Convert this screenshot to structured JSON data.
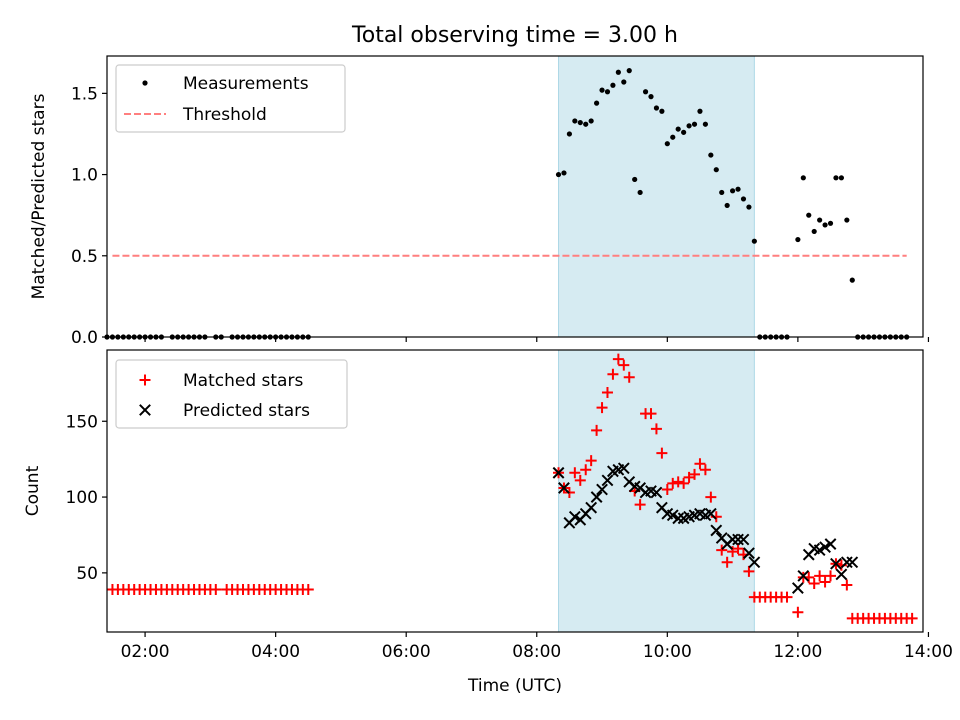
{
  "chart_data": [
    {
      "type": "scatter",
      "title": "Total observing time = 3.00 h",
      "xlabel": "",
      "ylabel": "Matched/Predicted stars",
      "xlim": [
        "01:25",
        "13:55"
      ],
      "ylim": [
        0,
        1.73
      ],
      "y_ticks": [
        0.0,
        0.5,
        1.0,
        1.5
      ],
      "y_tick_labels": [
        "0.0",
        "0.5",
        "1.0",
        "1.5"
      ],
      "x_ticks": [
        "02:00",
        "04:00",
        "06:00",
        "08:00",
        "10:00",
        "12:00",
        "14:00"
      ],
      "x_tick_labels_shown": false,
      "grid": false,
      "legend": "upper left",
      "observing_window": {
        "start": "08:20",
        "end": "11:20"
      },
      "series": [
        {
          "name": "Measurements",
          "marker": "dot",
          "color": "#000000",
          "points": [
            [
              "01:25",
              0
            ],
            [
              "01:30",
              0
            ],
            [
              "01:35",
              0
            ],
            [
              "01:40",
              0
            ],
            [
              "01:45",
              0
            ],
            [
              "01:50",
              0
            ],
            [
              "01:55",
              0
            ],
            [
              "02:00",
              0
            ],
            [
              "02:05",
              0
            ],
            [
              "02:10",
              0
            ],
            [
              "02:15",
              0
            ],
            [
              "02:25",
              0
            ],
            [
              "02:30",
              0
            ],
            [
              "02:35",
              0
            ],
            [
              "02:40",
              0
            ],
            [
              "02:45",
              0
            ],
            [
              "02:50",
              0
            ],
            [
              "02:55",
              0
            ],
            [
              "03:05",
              0
            ],
            [
              "03:10",
              0
            ],
            [
              "03:20",
              0
            ],
            [
              "03:25",
              0
            ],
            [
              "03:30",
              0
            ],
            [
              "03:35",
              0
            ],
            [
              "03:40",
              0
            ],
            [
              "03:45",
              0
            ],
            [
              "03:50",
              0
            ],
            [
              "03:55",
              0
            ],
            [
              "04:00",
              0
            ],
            [
              "04:05",
              0
            ],
            [
              "04:10",
              0
            ],
            [
              "04:15",
              0
            ],
            [
              "04:20",
              0
            ],
            [
              "04:25",
              0
            ],
            [
              "04:30",
              0
            ],
            [
              "08:20",
              1.0
            ],
            [
              "08:25",
              1.01
            ],
            [
              "08:30",
              1.25
            ],
            [
              "08:35",
              1.33
            ],
            [
              "08:40",
              1.32
            ],
            [
              "08:45",
              1.31
            ],
            [
              "08:50",
              1.33
            ],
            [
              "08:55",
              1.44
            ],
            [
              "09:00",
              1.52
            ],
            [
              "09:05",
              1.51
            ],
            [
              "09:10",
              1.55
            ],
            [
              "09:15",
              1.63
            ],
            [
              "09:20",
              1.57
            ],
            [
              "09:25",
              1.64
            ],
            [
              "09:30",
              0.97
            ],
            [
              "09:35",
              0.89
            ],
            [
              "09:40",
              1.51
            ],
            [
              "09:45",
              1.48
            ],
            [
              "09:50",
              1.41
            ],
            [
              "09:55",
              1.39
            ],
            [
              "10:00",
              1.19
            ],
            [
              "10:05",
              1.23
            ],
            [
              "10:10",
              1.28
            ],
            [
              "10:15",
              1.26
            ],
            [
              "10:20",
              1.3
            ],
            [
              "10:25",
              1.31
            ],
            [
              "10:30",
              1.39
            ],
            [
              "10:35",
              1.31
            ],
            [
              "10:40",
              1.12
            ],
            [
              "10:45",
              1.03
            ],
            [
              "10:50",
              0.89
            ],
            [
              "10:55",
              0.81
            ],
            [
              "11:00",
              0.9
            ],
            [
              "11:05",
              0.91
            ],
            [
              "11:10",
              0.85
            ],
            [
              "11:15",
              0.8
            ],
            [
              "11:20",
              0.59
            ],
            [
              "11:25",
              0
            ],
            [
              "11:30",
              0
            ],
            [
              "11:35",
              0
            ],
            [
              "11:40",
              0
            ],
            [
              "11:45",
              0
            ],
            [
              "11:50",
              0
            ],
            [
              "12:00",
              0.6
            ],
            [
              "12:05",
              0.98
            ],
            [
              "12:10",
              0.75
            ],
            [
              "12:15",
              0.65
            ],
            [
              "12:20",
              0.72
            ],
            [
              "12:25",
              0.69
            ],
            [
              "12:30",
              0.7
            ],
            [
              "12:35",
              0.98
            ],
            [
              "12:40",
              0.98
            ],
            [
              "12:45",
              0.72
            ],
            [
              "12:50",
              0.35
            ],
            [
              "12:55",
              0
            ],
            [
              "13:00",
              0
            ],
            [
              "13:05",
              0
            ],
            [
              "13:10",
              0
            ],
            [
              "13:15",
              0
            ],
            [
              "13:20",
              0
            ],
            [
              "13:25",
              0
            ],
            [
              "13:30",
              0
            ],
            [
              "13:35",
              0
            ],
            [
              "13:40",
              0
            ]
          ]
        },
        {
          "name": "Threshold",
          "marker": "dashed-line",
          "color": "#ff7f7f",
          "points": [
            [
              "01:30",
              0.5
            ],
            [
              "13:40",
              0.5
            ]
          ]
        }
      ]
    },
    {
      "type": "scatter",
      "title": "",
      "xlabel": "Time (UTC)",
      "ylabel": "Count",
      "xlim": [
        "01:25",
        "13:55"
      ],
      "ylim": [
        11,
        197
      ],
      "y_ticks": [
        50,
        100,
        150
      ],
      "y_tick_labels": [
        "50",
        "100",
        "150"
      ],
      "x_ticks": [
        "02:00",
        "04:00",
        "06:00",
        "08:00",
        "10:00",
        "12:00",
        "14:00"
      ],
      "x_tick_labels": [
        "02:00",
        "04:00",
        "06:00",
        "08:00",
        "10:00",
        "12:00",
        "14:00"
      ],
      "grid": false,
      "legend": "upper left",
      "observing_window": {
        "start": "08:20",
        "end": "11:20"
      },
      "series": [
        {
          "name": "Matched stars",
          "marker": "plus",
          "color": "#ff0000",
          "points": [
            [
              "01:30",
              39
            ],
            [
              "01:35",
              39
            ],
            [
              "01:40",
              39
            ],
            [
              "01:45",
              39
            ],
            [
              "01:50",
              39
            ],
            [
              "01:55",
              39
            ],
            [
              "02:00",
              39
            ],
            [
              "02:05",
              39
            ],
            [
              "02:10",
              39
            ],
            [
              "02:15",
              39
            ],
            [
              "02:20",
              39
            ],
            [
              "02:25",
              39
            ],
            [
              "02:30",
              39
            ],
            [
              "02:35",
              39
            ],
            [
              "02:40",
              39
            ],
            [
              "02:45",
              39
            ],
            [
              "02:50",
              39
            ],
            [
              "02:55",
              39
            ],
            [
              "03:00",
              39
            ],
            [
              "03:05",
              39
            ],
            [
              "03:15",
              39
            ],
            [
              "03:20",
              39
            ],
            [
              "03:25",
              39
            ],
            [
              "03:30",
              39
            ],
            [
              "03:35",
              39
            ],
            [
              "03:40",
              39
            ],
            [
              "03:45",
              39
            ],
            [
              "03:50",
              39
            ],
            [
              "03:55",
              39
            ],
            [
              "04:00",
              39
            ],
            [
              "04:05",
              39
            ],
            [
              "04:10",
              39
            ],
            [
              "04:15",
              39
            ],
            [
              "04:20",
              39
            ],
            [
              "04:25",
              39
            ],
            [
              "04:30",
              39
            ],
            [
              "08:20",
              116
            ],
            [
              "08:25",
              106
            ],
            [
              "08:30",
              103
            ],
            [
              "08:35",
              116
            ],
            [
              "08:40",
              111
            ],
            [
              "08:45",
              118
            ],
            [
              "08:50",
              124
            ],
            [
              "08:55",
              144
            ],
            [
              "09:00",
              159
            ],
            [
              "09:05",
              169
            ],
            [
              "09:10",
              181
            ],
            [
              "09:15",
              191
            ],
            [
              "09:20",
              187
            ],
            [
              "09:25",
              179
            ],
            [
              "09:30",
              104
            ],
            [
              "09:35",
              95
            ],
            [
              "09:40",
              155
            ],
            [
              "09:45",
              155
            ],
            [
              "09:50",
              145
            ],
            [
              "09:55",
              129
            ],
            [
              "10:00",
              105
            ],
            [
              "10:05",
              109
            ],
            [
              "10:10",
              110
            ],
            [
              "10:15",
              109
            ],
            [
              "10:20",
              113
            ],
            [
              "10:25",
              115
            ],
            [
              "10:30",
              122
            ],
            [
              "10:35",
              118
            ],
            [
              "10:40",
              100
            ],
            [
              "10:45",
              87
            ],
            [
              "10:50",
              65
            ],
            [
              "10:55",
              57
            ],
            [
              "11:00",
              64
            ],
            [
              "11:05",
              66
            ],
            [
              "11:10",
              62
            ],
            [
              "11:15",
              51
            ],
            [
              "11:20",
              34
            ],
            [
              "11:25",
              34
            ],
            [
              "11:30",
              34
            ],
            [
              "11:35",
              34
            ],
            [
              "11:40",
              34
            ],
            [
              "11:45",
              34
            ],
            [
              "11:50",
              34
            ],
            [
              "12:00",
              24
            ],
            [
              "12:05",
              47
            ],
            [
              "12:10",
              47
            ],
            [
              "12:15",
              43
            ],
            [
              "12:20",
              48
            ],
            [
              "12:25",
              44
            ],
            [
              "12:30",
              48
            ],
            [
              "12:35",
              56
            ],
            [
              "12:40",
              55
            ],
            [
              "12:45",
              42
            ],
            [
              "12:50",
              20
            ],
            [
              "12:55",
              20
            ],
            [
              "13:00",
              20
            ],
            [
              "13:05",
              20
            ],
            [
              "13:10",
              20
            ],
            [
              "13:15",
              20
            ],
            [
              "13:20",
              20
            ],
            [
              "13:25",
              20
            ],
            [
              "13:30",
              20
            ],
            [
              "13:35",
              20
            ],
            [
              "13:40",
              20
            ],
            [
              "13:45",
              20
            ]
          ]
        },
        {
          "name": "Predicted stars",
          "marker": "x",
          "color": "#000000",
          "points": [
            [
              "08:20",
              116
            ],
            [
              "08:25",
              106
            ],
            [
              "08:30",
              83
            ],
            [
              "08:35",
              87
            ],
            [
              "08:40",
              85
            ],
            [
              "08:45",
              89
            ],
            [
              "08:50",
              93
            ],
            [
              "08:55",
              100
            ],
            [
              "09:00",
              105
            ],
            [
              "09:05",
              111
            ],
            [
              "09:10",
              117
            ],
            [
              "09:15",
              118
            ],
            [
              "09:20",
              119
            ],
            [
              "09:25",
              110
            ],
            [
              "09:30",
              107
            ],
            [
              "09:35",
              106
            ],
            [
              "09:40",
              103
            ],
            [
              "09:45",
              104
            ],
            [
              "09:50",
              103
            ],
            [
              "09:55",
              93
            ],
            [
              "10:00",
              89
            ],
            [
              "10:05",
              88
            ],
            [
              "10:10",
              86
            ],
            [
              "10:15",
              86
            ],
            [
              "10:20",
              87
            ],
            [
              "10:25",
              88
            ],
            [
              "10:30",
              89
            ],
            [
              "10:35",
              88
            ],
            [
              "10:40",
              89
            ],
            [
              "10:45",
              78
            ],
            [
              "10:50",
              73
            ],
            [
              "10:55",
              69
            ],
            [
              "11:00",
              72
            ],
            [
              "11:05",
              72
            ],
            [
              "11:10",
              72
            ],
            [
              "11:15",
              63
            ],
            [
              "11:20",
              57
            ],
            [
              "12:00",
              40
            ],
            [
              "12:05",
              48
            ],
            [
              "12:10",
              62
            ],
            [
              "12:15",
              66
            ],
            [
              "12:20",
              65
            ],
            [
              "12:25",
              67
            ],
            [
              "12:30",
              69
            ],
            [
              "12:35",
              56
            ],
            [
              "12:40",
              49
            ],
            [
              "12:45",
              57
            ],
            [
              "12:50",
              57
            ]
          ]
        }
      ]
    }
  ]
}
